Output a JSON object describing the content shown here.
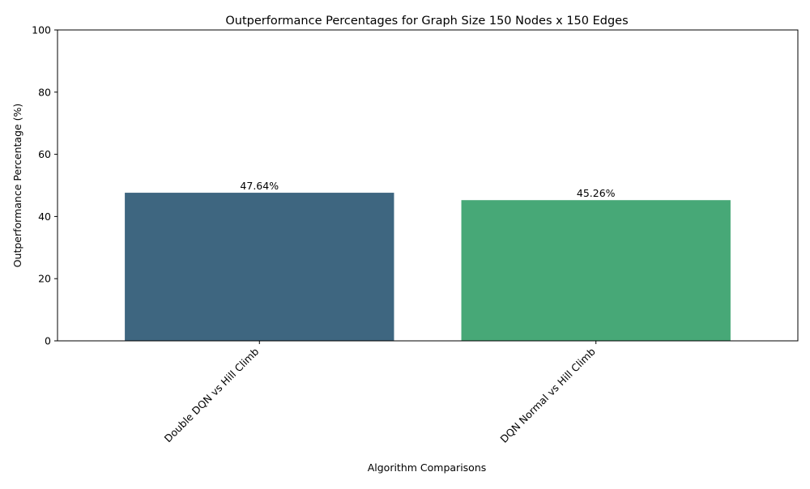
{
  "chart_data": {
    "type": "bar",
    "title": "Outperformance Percentages for Graph Size 150 Nodes x 150 Edges",
    "xlabel": "Algorithm Comparisons",
    "ylabel": "Outperformance Percentage (%)",
    "categories": [
      "Double DQN vs Hill Climb",
      "DQN Normal vs Hill Climb"
    ],
    "values": [
      47.64,
      45.26
    ],
    "value_labels": [
      "47.64%",
      "45.26%"
    ],
    "colors": [
      "#3e6680",
      "#47a877"
    ],
    "ylim": [
      0,
      100
    ],
    "yticks": [
      0,
      20,
      40,
      60,
      80,
      100
    ],
    "ytick_labels": [
      "0",
      "20",
      "40",
      "60",
      "80",
      "100"
    ],
    "xtick_rotation": 45,
    "grid": false,
    "legend": "none"
  }
}
